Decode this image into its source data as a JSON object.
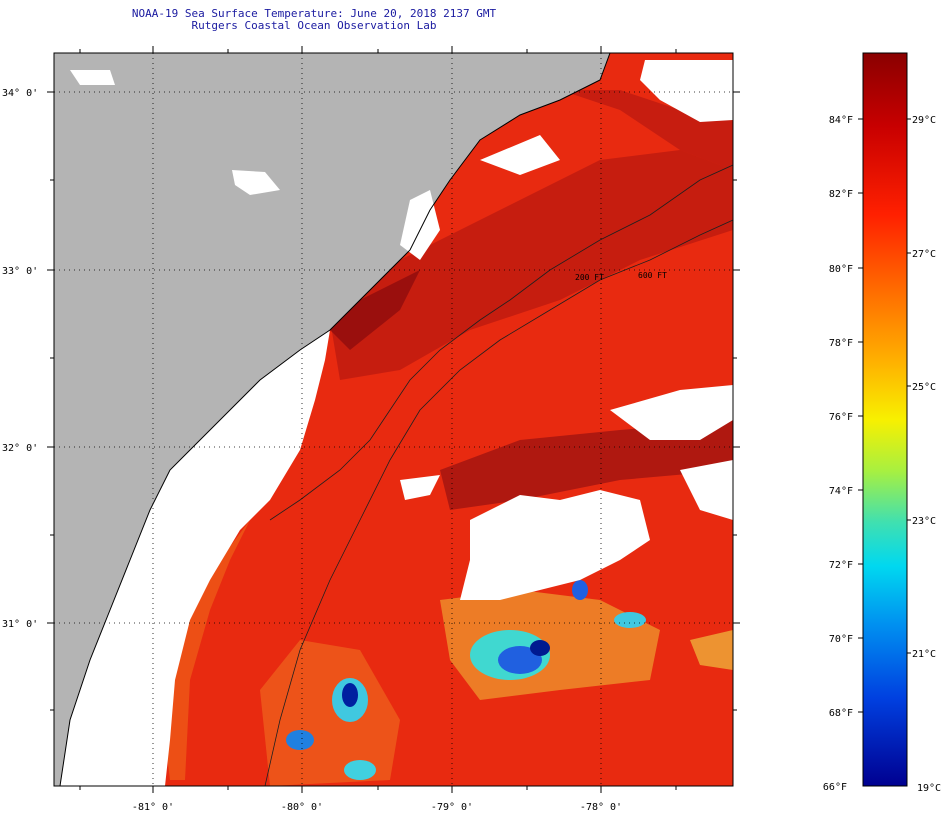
{
  "title": {
    "line1": "NOAA-19 Sea Surface Temperature:  June 20, 2018 2137 GMT",
    "line2": "Rutgers Coastal Ocean Observation Lab"
  },
  "map": {
    "lat_labels": [
      "34° 0'",
      "33° 0'",
      "32° 0'",
      "31° 0'"
    ],
    "lon_labels": [
      "-81° 0'",
      "-80° 0'",
      "-79° 0'",
      "-78° 0'"
    ],
    "isobath_labels": [
      "200 FT",
      "600 FT"
    ],
    "colors": {
      "land": "#b4b4b4",
      "cloud": "#ffffff",
      "coast": "#000000",
      "warm": "#e82a10",
      "hot": "#9a1010"
    }
  },
  "colorbar": {
    "fahrenheit": [
      "84°F",
      "82°F",
      "80°F",
      "78°F",
      "76°F",
      "74°F",
      "72°F",
      "70°F",
      "68°F",
      "66°F"
    ],
    "celsius": [
      "29°C",
      "27°C",
      "25°C",
      "23°C",
      "21°C",
      "19°C"
    ],
    "stops": [
      "#8a0000",
      "#c80000",
      "#ff2000",
      "#ff7000",
      "#ffb000",
      "#f8f000",
      "#a8f040",
      "#40e0b0",
      "#00d8f0",
      "#0090f0",
      "#0040e0",
      "#000090"
    ]
  }
}
